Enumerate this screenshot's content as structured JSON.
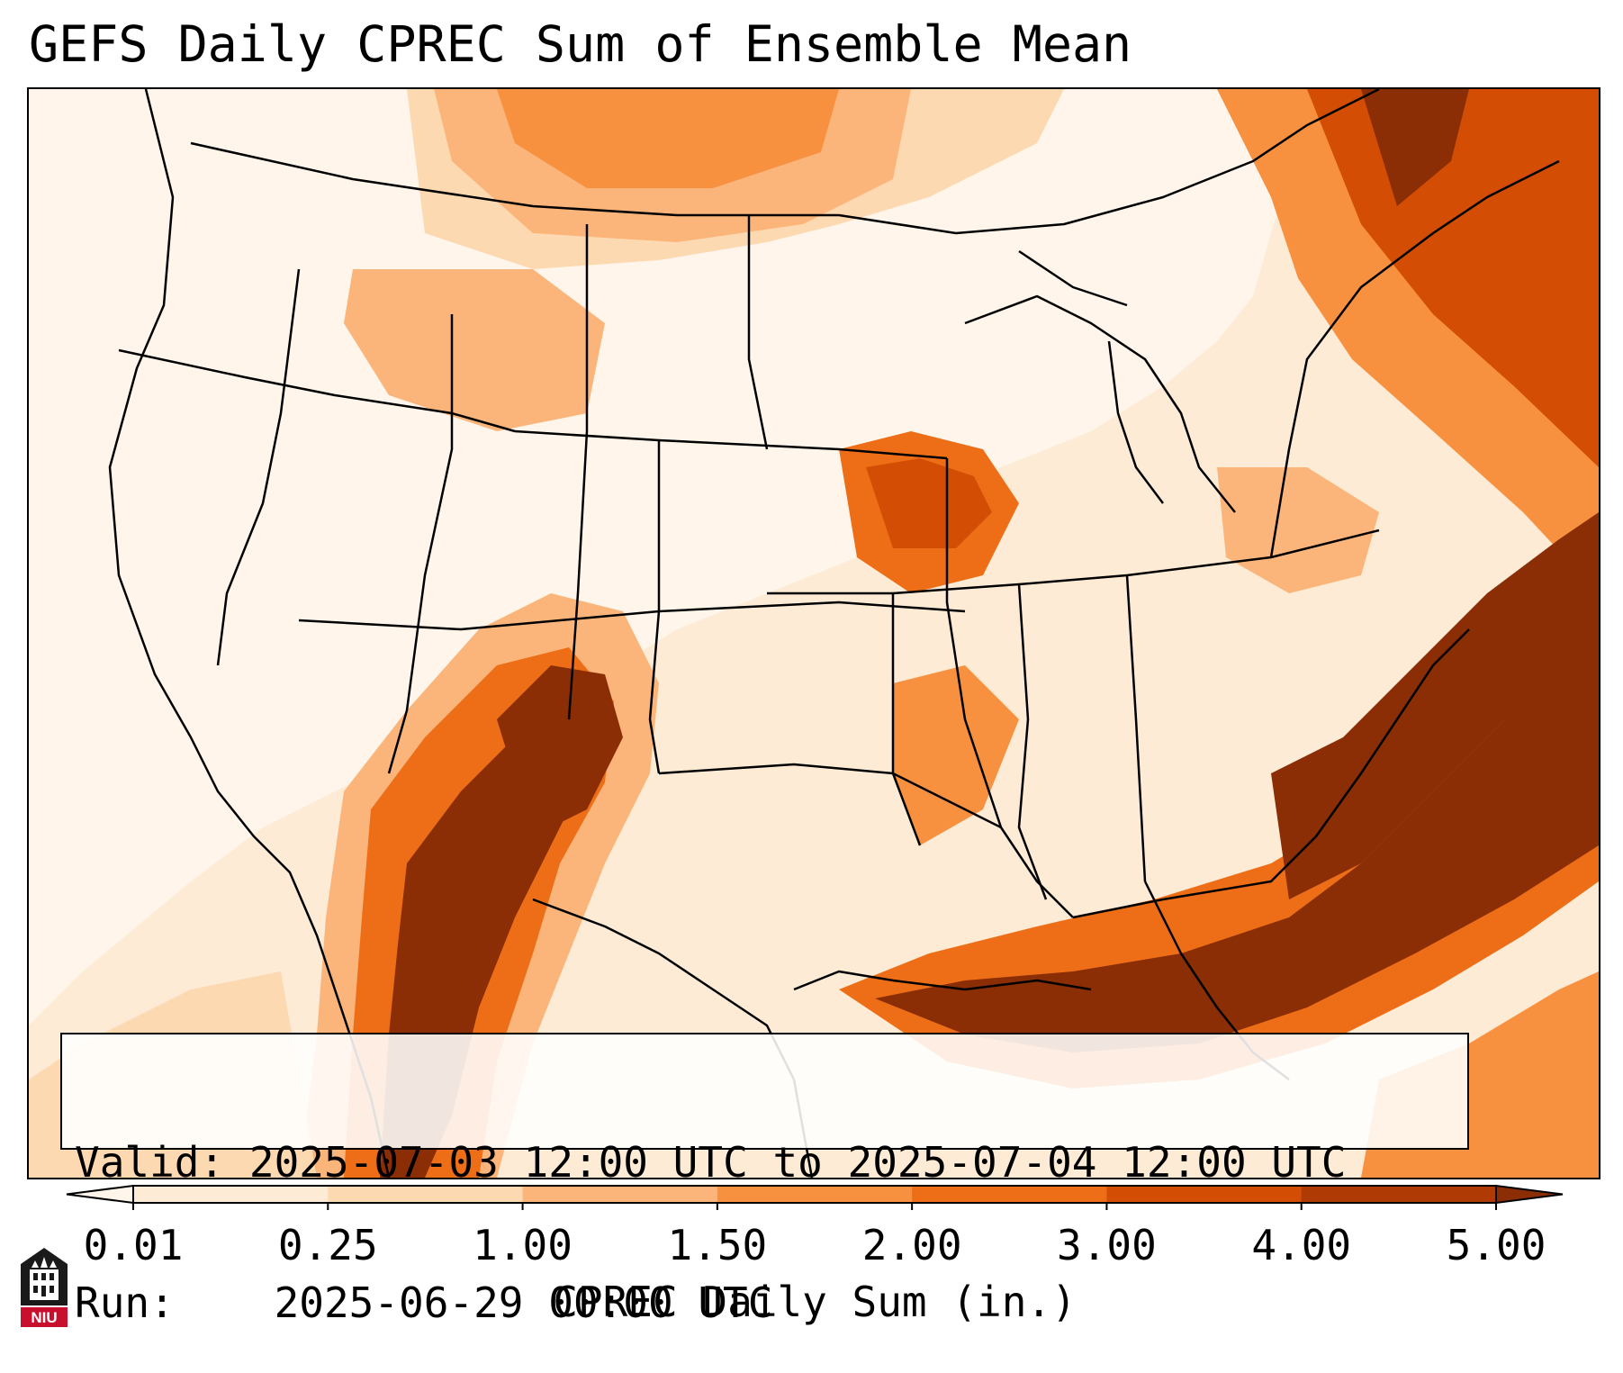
{
  "title": "GEFS Daily CPREC Sum of Ensemble Mean",
  "info": {
    "valid_label": "Valid:",
    "valid_value": "2025-07-03 12:00 UTC to 2025-07-04 12:00 UTC",
    "run_label": "Run:",
    "run_value": "2025-06-29 00:00 UTC"
  },
  "colorbar": {
    "label": "CPREC Daily Sum (in.)",
    "ticks": [
      "0.01",
      "0.25",
      "1.00",
      "1.50",
      "2.00",
      "3.00",
      "4.00",
      "5.00"
    ],
    "colors": [
      "#fdebd5",
      "#fdd9b2",
      "#fbb57a",
      "#f8913f",
      "#ed6e16",
      "#d34e04",
      "#b03a04"
    ],
    "under_color": "#fff5eb",
    "over_color": "#8b2e05",
    "extend": "both"
  },
  "logo": {
    "text": "NIU",
    "icon": "university-tower-icon",
    "color": "#c8102e"
  }
}
